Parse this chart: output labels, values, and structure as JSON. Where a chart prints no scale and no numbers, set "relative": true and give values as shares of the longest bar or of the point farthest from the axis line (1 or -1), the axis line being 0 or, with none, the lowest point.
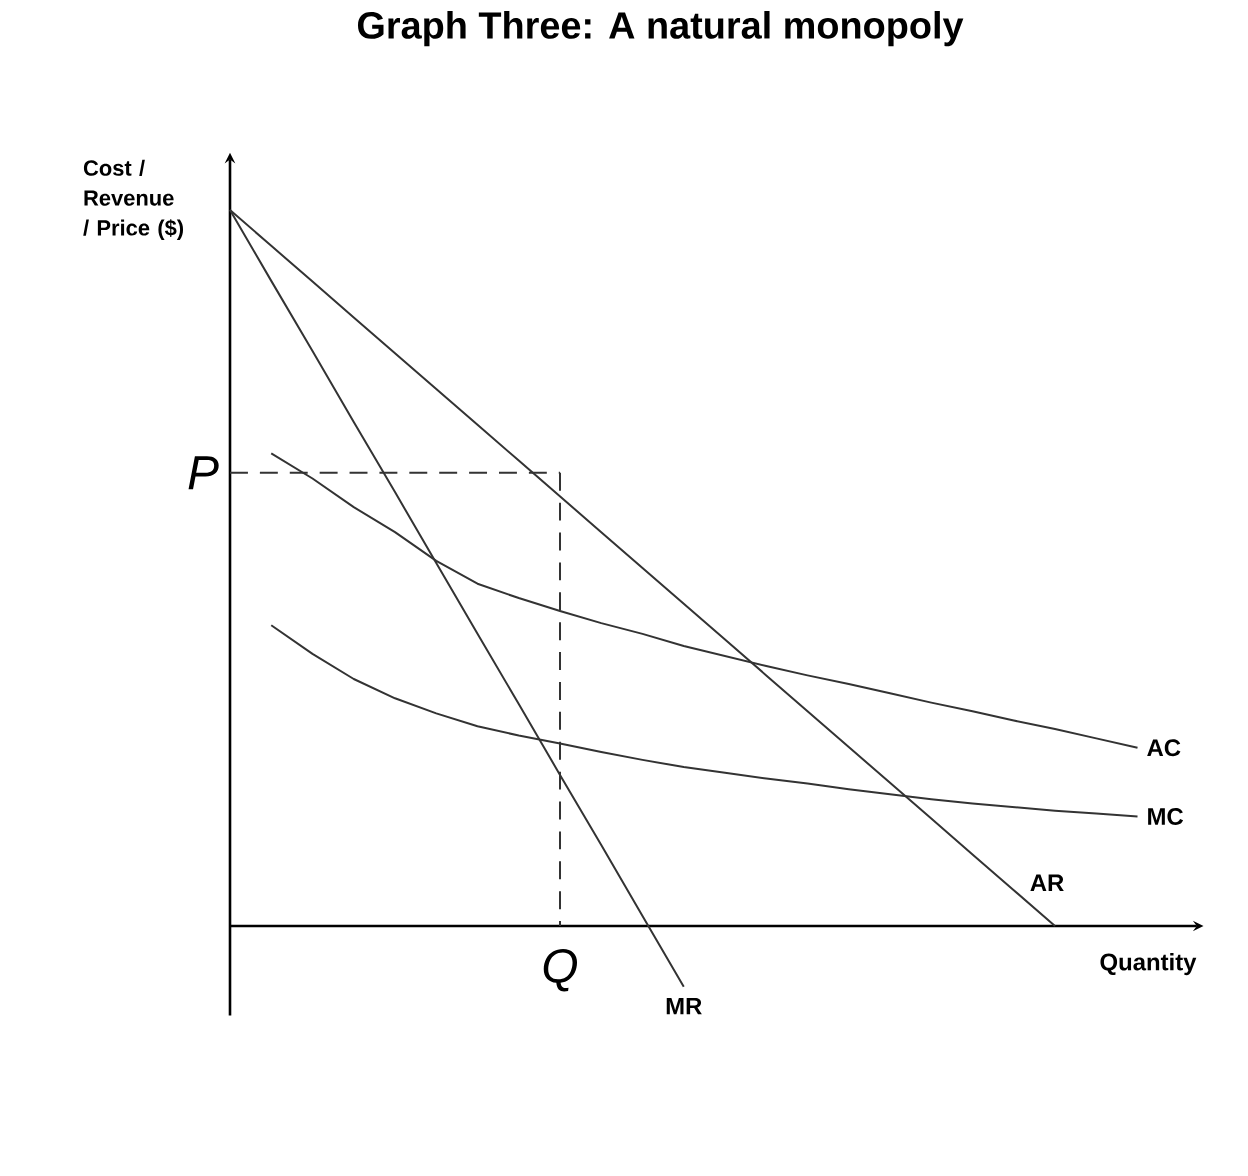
{
  "chart_data": {
    "type": "line",
    "title": "Graph Three: A natural monopoly",
    "xlabel": "Quantity",
    "ylabel": "Cost / Revenue / Price ($)",
    "relative": true,
    "line_style": "solid",
    "categories": [
      null,
      null,
      null,
      null,
      null,
      null,
      null,
      null,
      null,
      null,
      null,
      null,
      null,
      null,
      null,
      null,
      null,
      null,
      null,
      null,
      null,
      null,
      null
    ],
    "series": [
      {
        "name": "AC",
        "color": "#333333",
        "values": [
          null,
          0.66,
          0.625,
          0.585,
          0.55,
          0.51,
          0.478,
          0.458,
          0.44,
          0.423,
          0.408,
          0.391,
          0.377,
          0.363,
          0.35,
          0.338,
          0.325,
          0.312,
          0.3,
          0.287,
          0.275,
          0.262,
          0.249
        ]
      },
      {
        "name": "MC",
        "color": "#333333",
        "values": [
          null,
          0.42,
          0.38,
          0.345,
          0.318,
          0.297,
          0.279,
          0.266,
          0.255,
          0.243,
          0.232,
          0.222,
          0.214,
          0.206,
          0.199,
          0.191,
          0.184,
          0.177,
          0.171,
          0.166,
          0.161,
          0.157,
          0.153
        ]
      },
      {
        "name": "AR",
        "color": "#333333",
        "values": [
          1,
          0.95,
          0.9,
          0.85,
          0.8,
          0.75,
          0.7,
          0.65,
          0.6,
          0.55,
          0.5,
          0.45,
          0.4,
          0.35,
          0.3,
          0.25,
          0.2,
          0.15,
          0.1,
          0.05,
          0,
          null,
          null
        ]
      },
      {
        "name": "MR",
        "color": "#333333",
        "values": [
          1,
          0.901,
          0.803,
          0.704,
          0.606,
          0.507,
          0.408,
          0.31,
          0.211,
          0.113,
          0.014,
          -0.085,
          null,
          null,
          null,
          null,
          null,
          null,
          null,
          null,
          null,
          null,
          null
        ]
      },
      {
        "color": "#333333",
        "line_style": "dashed",
        "values": [
          0.633,
          0.633,
          0.633,
          0.633,
          0.633,
          0.633,
          0.633,
          0.633,
          0.633,
          null,
          null,
          null,
          null,
          null,
          null,
          null,
          null,
          null,
          null,
          null,
          null,
          null,
          null
        ]
      }
    ],
    "annotations": [
      "P",
      "Q"
    ]
  }
}
